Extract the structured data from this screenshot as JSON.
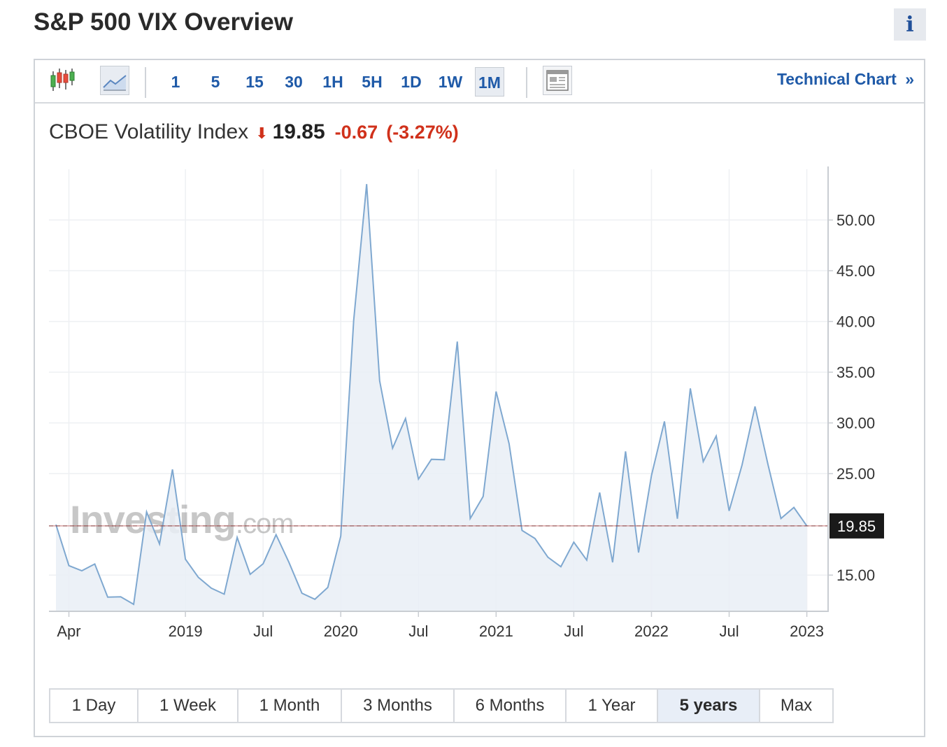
{
  "page_title": "S&P 500 VIX Overview",
  "info_label": "i",
  "toolbar": {
    "icons": [
      "candlestick-chart-icon",
      "area-chart-icon",
      "page-layout-icon"
    ],
    "intervals": [
      "1",
      "5",
      "15",
      "30",
      "1H",
      "5H",
      "1D",
      "1W",
      "1M"
    ],
    "active_interval": "1M",
    "technical_link": "Technical Chart",
    "technical_link_glyph": "»"
  },
  "quote": {
    "name": "CBOE Volatility Index",
    "last": "19.85",
    "change": "-0.67",
    "change_pct": "(-3.27%)",
    "direction": "down"
  },
  "watermark": {
    "brand": "Investing",
    "suffix": ".com"
  },
  "ranges": [
    "1 Day",
    "1 Week",
    "1 Month",
    "3 Months",
    "6 Months",
    "1 Year",
    "5 years",
    "Max"
  ],
  "active_range": "5 years",
  "colors": {
    "line": "#7fa8d0",
    "fill": "#e9eef6",
    "down": "#d0311b",
    "link": "#1f5aa8",
    "last_price_label_bg": "#1a1a1a",
    "last_price_line": "#b23b3b"
  },
  "chart_data": {
    "type": "area",
    "x": [
      "2018-03",
      "2018-04",
      "2018-05",
      "2018-06",
      "2018-07",
      "2018-08",
      "2018-09",
      "2018-10",
      "2018-11",
      "2018-12",
      "2019-01",
      "2019-02",
      "2019-03",
      "2019-04",
      "2019-05",
      "2019-06",
      "2019-07",
      "2019-08",
      "2019-09",
      "2019-10",
      "2019-11",
      "2019-12",
      "2020-01",
      "2020-02",
      "2020-03",
      "2020-04",
      "2020-05",
      "2020-06",
      "2020-07",
      "2020-08",
      "2020-09",
      "2020-10",
      "2020-11",
      "2020-12",
      "2021-01",
      "2021-02",
      "2021-03",
      "2021-04",
      "2021-05",
      "2021-06",
      "2021-07",
      "2021-08",
      "2021-09",
      "2021-10",
      "2021-11",
      "2021-12",
      "2022-01",
      "2022-02",
      "2022-03",
      "2022-04",
      "2022-05",
      "2022-06",
      "2022-07",
      "2022-08",
      "2022-09",
      "2022-10",
      "2022-11",
      "2022-12",
      "2023-01"
    ],
    "series": [
      {
        "values": [
          19.97,
          15.93,
          15.43,
          16.09,
          12.83,
          12.86,
          12.12,
          21.23,
          18.07,
          25.42,
          16.57,
          14.78,
          13.71,
          13.12,
          18.71,
          15.08,
          16.12,
          18.98,
          16.24,
          13.22,
          12.62,
          13.78,
          18.84,
          40.11,
          53.54,
          34.15,
          27.51,
          30.43,
          24.46,
          26.41,
          26.37,
          38.02,
          20.57,
          22.75,
          33.09,
          27.95,
          19.4,
          18.61,
          16.76,
          15.83,
          18.24,
          16.48,
          23.14,
          16.26,
          27.19,
          17.22,
          24.83,
          30.15,
          20.56,
          33.4,
          26.19,
          28.71,
          21.33,
          25.87,
          31.62,
          25.88,
          20.58,
          21.67,
          19.85
        ]
      }
    ],
    "ylim": [
      11.5,
      55
    ],
    "y_ticks": [
      "15.00",
      "25.00",
      "30.00",
      "35.00",
      "40.00",
      "45.00",
      "50.00"
    ],
    "x_ticks": [
      {
        "label": "Apr",
        "x": "2018-04"
      },
      {
        "label": "2019",
        "x": "2019-01"
      },
      {
        "label": "Jul",
        "x": "2019-07"
      },
      {
        "label": "2020",
        "x": "2020-01"
      },
      {
        "label": "Jul",
        "x": "2020-07"
      },
      {
        "label": "2021",
        "x": "2021-01"
      },
      {
        "label": "Jul",
        "x": "2021-07"
      },
      {
        "label": "2022",
        "x": "2022-01"
      },
      {
        "label": "Jul",
        "x": "2022-07"
      },
      {
        "label": "2023",
        "x": "2023-01"
      }
    ],
    "last_value_label": "19.85",
    "grid": true
  }
}
